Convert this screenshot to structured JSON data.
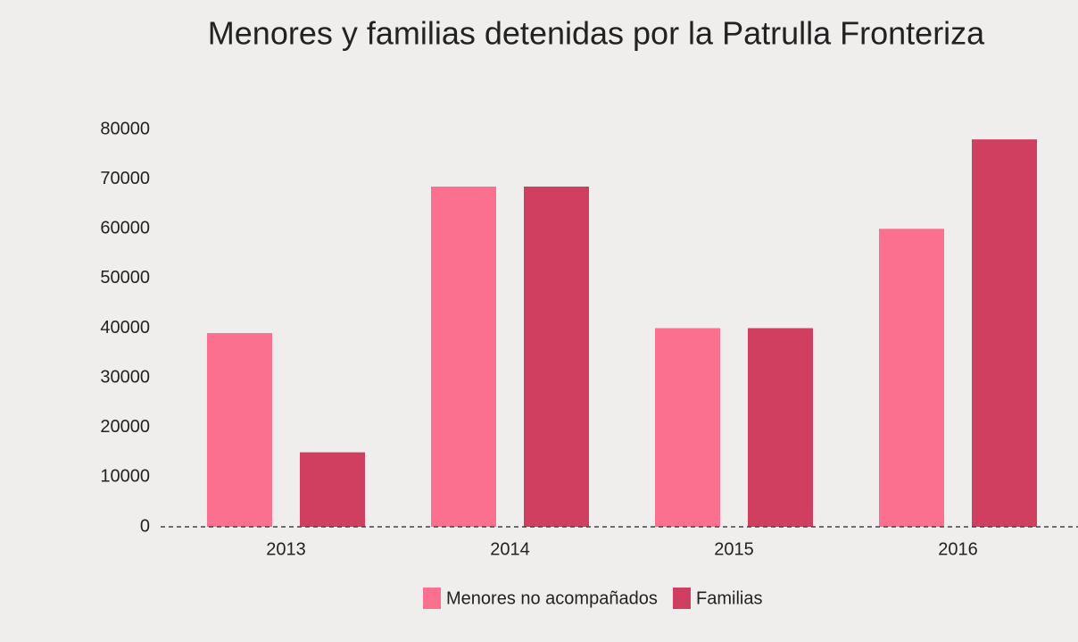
{
  "chart_data": {
    "type": "bar",
    "title": "Menores y familias detenidas por la Patrulla Fronteriza",
    "categories": [
      "2013",
      "2014",
      "2015",
      "2016"
    ],
    "series": [
      {
        "name": "Menores no acompañados",
        "color": "#fb6f8f",
        "values": [
          39000,
          68500,
          40000,
          60000
        ]
      },
      {
        "name": "Familias",
        "color": "#d03f60",
        "values": [
          15000,
          68500,
          40000,
          78000
        ]
      }
    ],
    "ylim": [
      0,
      80000
    ],
    "yticks": [
      0,
      10000,
      20000,
      30000,
      40000,
      50000,
      60000,
      70000,
      80000
    ],
    "grid": false,
    "legend": "bottom"
  }
}
